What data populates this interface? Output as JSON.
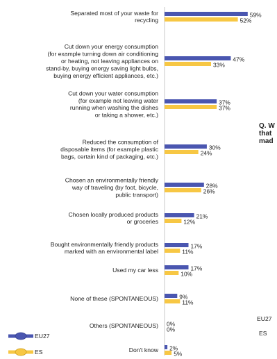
{
  "side_question": [
    "Q. W",
    "that",
    "mad"
  ],
  "chart_data": {
    "type": "bar",
    "orientation": "horizontal",
    "categories": [
      [
        "Separated most of your waste for",
        "recycling"
      ],
      [
        "Cut down your energy consumption",
        "(for example turning down air conditioning",
        "or heating, not leaving appliances on",
        "stand-by, buying energy saving light bulbs,",
        "buying energy efficient appliances, etc.)"
      ],
      [
        "Cut down your water consumption",
        "(for example not leaving water",
        "running when washing the dishes",
        "or taking a shower, etc.)"
      ],
      [
        "Reduced the consumption of",
        "disposable items (for example plastic",
        "bags, certain kind of packaging, etc.)"
      ],
      [
        "Chosen an environmentally friendly",
        "way of traveling (by foot, bicycle,",
        "public transport)"
      ],
      [
        "Chosen locally produced products",
        "or groceries"
      ],
      [
        "Bought environmentally friendly products",
        "marked with an environmental label"
      ],
      [
        "Used my car less"
      ],
      [
        "None of these (SPONTANEOUS)"
      ],
      [
        "Others (SPONTANEOUS)"
      ],
      [
        "Don't know"
      ]
    ],
    "series": [
      {
        "name": "EU27",
        "color": "#4a56b0",
        "values": [
          59,
          47,
          37,
          30,
          28,
          21,
          17,
          17,
          9,
          0,
          2
        ],
        "labels": [
          "59%",
          "47%",
          "37%",
          "30%",
          "28%",
          "21%",
          "17%",
          "17%",
          "9%",
          "0%",
          "2%"
        ]
      },
      {
        "name": "ES",
        "color": "#f7c744",
        "values": [
          52,
          33,
          37,
          24,
          26,
          12,
          11,
          10,
          11,
          0,
          5
        ],
        "labels": [
          "52%",
          "33%",
          "37%",
          "24%",
          "26%",
          "12%",
          "11%",
          "10%",
          "11%",
          "0%",
          "5%"
        ]
      }
    ],
    "legend": {
      "placement": "bottom-left",
      "entries": [
        "EU27",
        "ES"
      ]
    },
    "side_legend": [
      "EU27",
      "ES"
    ],
    "xlim": [
      0,
      59
    ],
    "grid": false
  }
}
